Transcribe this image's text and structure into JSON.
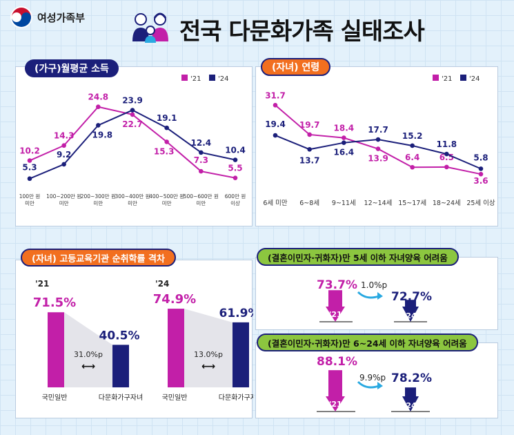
{
  "header": {
    "ministry": "여성가족부",
    "title": "전국 다문화가족 실태조사"
  },
  "colors": {
    "magenta": "#c21fa8",
    "navy": "#1b1f7a",
    "orange": "#f26f1f",
    "green": "#8cc63f",
    "cyan": "#29a9e1"
  },
  "chart_data": [
    {
      "type": "line",
      "title": "(가구)월평균 소득",
      "legend": [
        "'21",
        "'24"
      ],
      "categories": [
        "100만 원\n미만",
        "100~200만 원\n미만",
        "200~300만 원\n미만",
        "300~400만 원\n미만",
        "400~500만 원\n미만",
        "500~600만 원\n미만",
        "600만 원\n이상"
      ],
      "series": [
        {
          "name": "'21",
          "values": [
            10.2,
            14.3,
            24.8,
            22.7,
            15.3,
            7.3,
            5.5
          ]
        },
        {
          "name": "'24",
          "values": [
            5.3,
            9.2,
            19.8,
            23.9,
            19.1,
            12.4,
            10.4
          ]
        }
      ],
      "ylim": [
        0,
        30
      ]
    },
    {
      "type": "line",
      "title": "(자녀) 연령",
      "legend": [
        "'21",
        "'24"
      ],
      "categories": [
        "6세 미만",
        "6~8세",
        "9~11세",
        "12~14세",
        "15~17세",
        "18~24세",
        "25세 이상"
      ],
      "series": [
        {
          "name": "'21",
          "values": [
            31.7,
            19.7,
            18.4,
            13.9,
            6.4,
            6.5,
            3.6
          ]
        },
        {
          "name": "'24",
          "values": [
            19.4,
            13.7,
            16.4,
            17.7,
            15.2,
            11.8,
            5.8
          ]
        }
      ],
      "ylim": [
        0,
        36
      ]
    },
    {
      "type": "bar",
      "title": "(자녀) 고등교육기관 순취학률 격차",
      "groups": [
        {
          "year": "'21",
          "general": 71.5,
          "multicultural": 40.5,
          "gap": "31.0%p",
          "general_label": "71.5%",
          "multi_label": "40.5%"
        },
        {
          "year": "'24",
          "general": 74.9,
          "multicultural": 61.9,
          "gap": "13.0%p",
          "general_label": "74.9%",
          "multi_label": "61.9%"
        }
      ],
      "categories": [
        "국민일반",
        "다문화가구자녀"
      ],
      "ylim": [
        0,
        100
      ]
    }
  ],
  "panel4": {
    "title": "(결혼이민자·귀화자)만 5세 이하 자녀양육 어려움",
    "val21": "73.7%",
    "val24": "72.7%",
    "diff": "1.0%p",
    "yr21": "'21",
    "yr24": "'24",
    "level21": 73.7,
    "level24": 72.7
  },
  "panel5": {
    "title": "(결혼이민자·귀화자)만 6~24세 이하 자녀양육 어려움",
    "val21": "88.1%",
    "val24": "78.2%",
    "diff": "9.9%p",
    "yr21": "'21",
    "yr24": "'24",
    "level21": 88.1,
    "level24": 78.2
  }
}
